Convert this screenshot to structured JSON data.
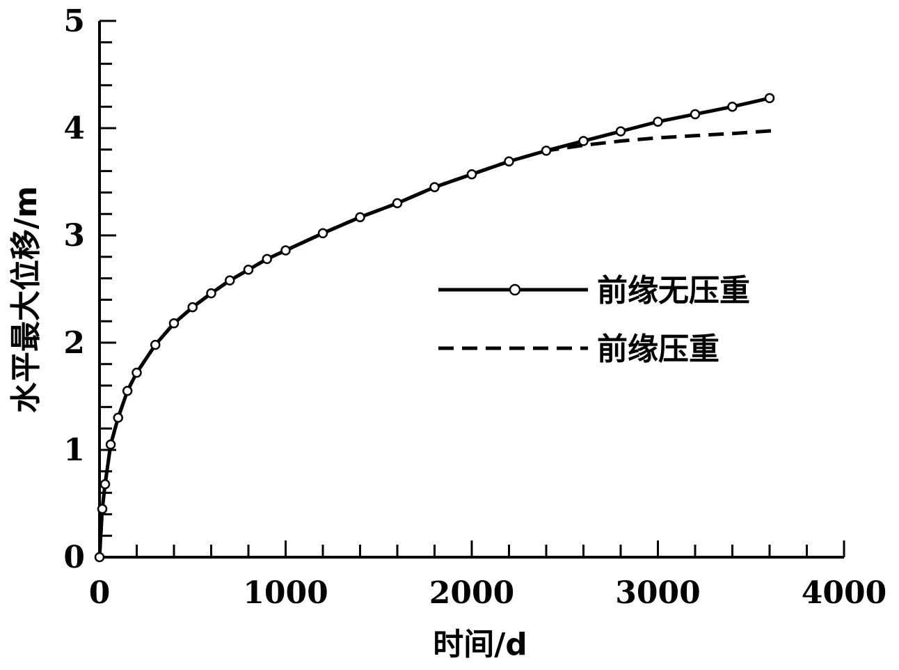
{
  "chart_data": {
    "type": "line",
    "title": "",
    "xlabel": "时间/d",
    "ylabel": "水平最大位移/m",
    "xlim": [
      0,
      4000
    ],
    "ylim": [
      0,
      5
    ],
    "x_ticks": [
      0,
      1000,
      2000,
      3000,
      4000
    ],
    "y_ticks": [
      0,
      1,
      2,
      3,
      4,
      5
    ],
    "grid": false,
    "legend_position": "center-right",
    "series": [
      {
        "name": "前缘无压重",
        "style": "solid-with-circle-markers",
        "color": "#000000",
        "x": [
          0,
          15,
          30,
          60,
          100,
          150,
          200,
          300,
          400,
          500,
          600,
          700,
          800,
          900,
          1000,
          1200,
          1400,
          1600,
          1800,
          2000,
          2200,
          2400,
          2600,
          2800,
          3000,
          3200,
          3400,
          3600
        ],
        "y": [
          0,
          0.45,
          0.68,
          1.05,
          1.3,
          1.55,
          1.72,
          1.98,
          2.18,
          2.33,
          2.46,
          2.58,
          2.68,
          2.78,
          2.86,
          3.02,
          3.17,
          3.3,
          3.45,
          3.57,
          3.69,
          3.79,
          3.88,
          3.97,
          4.06,
          4.13,
          4.2,
          4.28
        ]
      },
      {
        "name": "前缘压重",
        "style": "dashed",
        "color": "#000000",
        "x": [
          0,
          15,
          30,
          60,
          100,
          150,
          200,
          300,
          400,
          500,
          600,
          700,
          800,
          900,
          1000,
          1200,
          1400,
          1600,
          1800,
          2000,
          2200,
          2400,
          2600,
          2800,
          3000,
          3200,
          3400,
          3650
        ],
        "y": [
          0,
          0.45,
          0.68,
          1.05,
          1.3,
          1.55,
          1.72,
          1.98,
          2.18,
          2.33,
          2.46,
          2.58,
          2.68,
          2.78,
          2.86,
          3.02,
          3.17,
          3.3,
          3.45,
          3.57,
          3.69,
          3.79,
          3.84,
          3.88,
          3.91,
          3.93,
          3.95,
          3.98
        ]
      }
    ]
  }
}
